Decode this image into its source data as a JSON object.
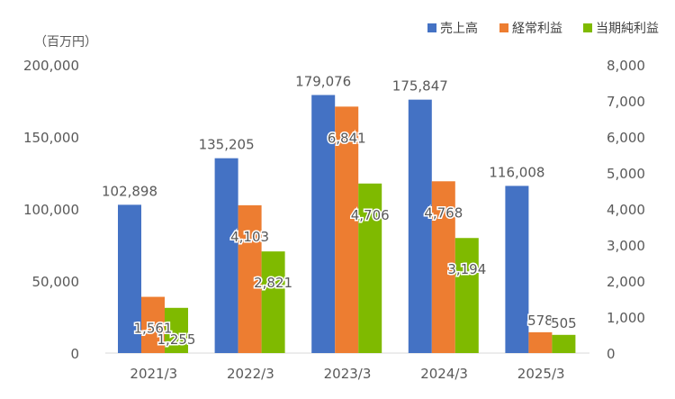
{
  "chart_data": {
    "type": "bar",
    "unit_label": "（百万円）",
    "categories": [
      "2021/3",
      "2022/3",
      "2023/3",
      "2024/3",
      "2025/3"
    ],
    "series": [
      {
        "name": "売上高",
        "axis": "left",
        "color": "#4472C4",
        "values": [
          102898,
          135205,
          179076,
          175847,
          116008
        ],
        "labels": [
          "102,898",
          "135,205",
          "179,076",
          "175,847",
          "116,008"
        ]
      },
      {
        "name": "経常利益",
        "axis": "right",
        "color": "#ED7D31",
        "values": [
          1561,
          4103,
          6841,
          4768,
          578
        ],
        "labels": [
          "1,561",
          "4,103",
          "6,841",
          "4,768",
          "578"
        ]
      },
      {
        "name": "当期純利益",
        "axis": "right",
        "color": "#7FBA00",
        "values": [
          1255,
          2821,
          4706,
          3194,
          505
        ],
        "labels": [
          "1,255",
          "2,821",
          "4,706",
          "3,194",
          "505"
        ]
      }
    ],
    "y_left": {
      "min": 0,
      "max": 200000,
      "ticks": [
        "0",
        "50,000",
        "100,000",
        "150,000",
        "200,000"
      ]
    },
    "y_right": {
      "min": 0,
      "max": 8000,
      "ticks": [
        "0",
        "1,000",
        "2,000",
        "3,000",
        "4,000",
        "5,000",
        "6,000",
        "7,000",
        "8,000"
      ]
    },
    "legend_position": "top-right",
    "grid": false
  }
}
